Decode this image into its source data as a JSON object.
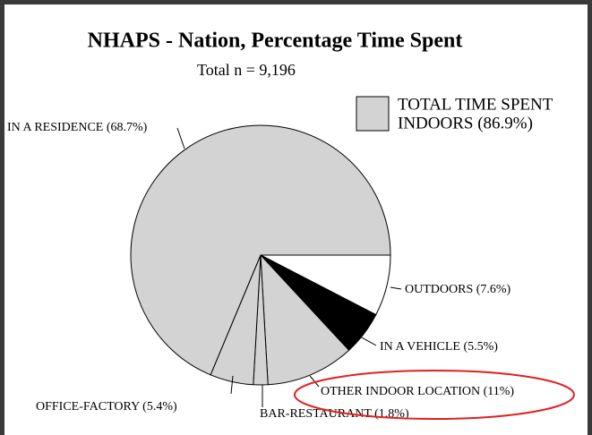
{
  "chart_data": {
    "type": "pie",
    "title": "NHAPS - Nation, Percentage Time Spent",
    "subtitle": "Total n = 9,196",
    "legend": [
      "TOTAL TIME SPENT",
      "INDOORS (86.9%)"
    ],
    "legend_color": "#d3d3d3",
    "categories": [
      "OUTDOORS (7.6%)",
      "IN A VEHICLE (5.5%)",
      "OTHER INDOOR LOCATION (11%)",
      "BAR-RESTAURANT (1.8%)",
      "OFFICE-FACTORY (5.4%)",
      "IN A RESIDENCE (68.7%)"
    ],
    "values": [
      7.6,
      5.5,
      11,
      1.8,
      5.4,
      68.7
    ],
    "colors": [
      "#ffffff",
      "#000000",
      "#d3d3d3",
      "#d3d3d3",
      "#d3d3d3",
      "#d3d3d3"
    ]
  }
}
